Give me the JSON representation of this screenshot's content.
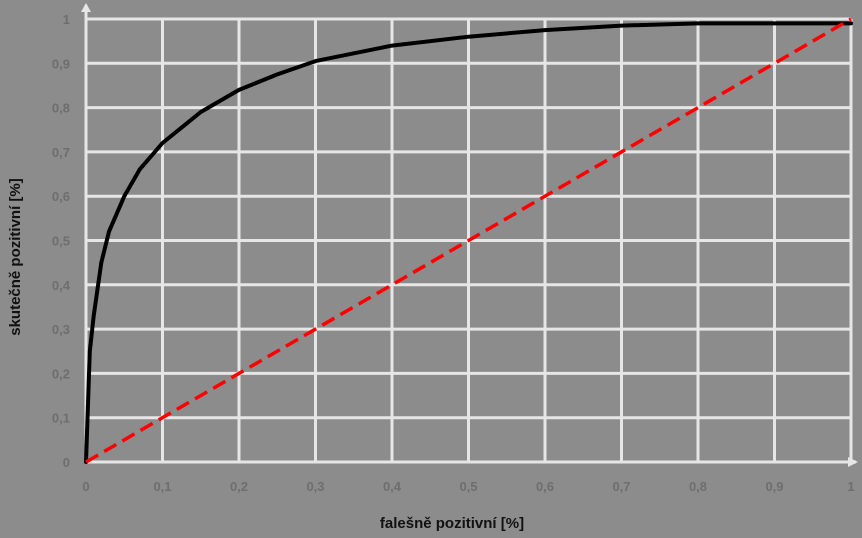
{
  "chart_data": {
    "type": "line",
    "title": "",
    "xlabel": "falešně pozitivní [%]",
    "ylabel": "skutečně pozitivní [%]",
    "xlim": [
      0,
      1
    ],
    "ylim": [
      0,
      1
    ],
    "x_ticks": [
      "0",
      "0,1",
      "0,2",
      "0,3",
      "0,4",
      "0,5",
      "0,6",
      "0,7",
      "0,8",
      "0,9",
      "1"
    ],
    "y_ticks": [
      "0",
      "0,1",
      "0,2",
      "0,3",
      "0,4",
      "0,5",
      "0,6",
      "0,7",
      "0,8",
      "0,9",
      "1"
    ],
    "grid": true,
    "colors": {
      "background": "#8c8c8c",
      "grid": "#e6e6e6",
      "roc": "#000000",
      "diagonal": "#ff0000",
      "tick_text": "#6e6e6e"
    },
    "series": [
      {
        "style": "solid",
        "x": [
          0,
          0.005,
          0.01,
          0.02,
          0.03,
          0.05,
          0.07,
          0.1,
          0.15,
          0.2,
          0.25,
          0.3,
          0.4,
          0.5,
          0.6,
          0.7,
          0.8,
          0.9,
          1
        ],
        "y": [
          0,
          0.25,
          0.33,
          0.45,
          0.52,
          0.6,
          0.66,
          0.72,
          0.79,
          0.84,
          0.875,
          0.905,
          0.94,
          0.96,
          0.975,
          0.985,
          0.99,
          0.99,
          0.99
        ]
      },
      {
        "style": "dashed",
        "x": [
          0,
          1
        ],
        "y": [
          0,
          1
        ]
      }
    ]
  }
}
